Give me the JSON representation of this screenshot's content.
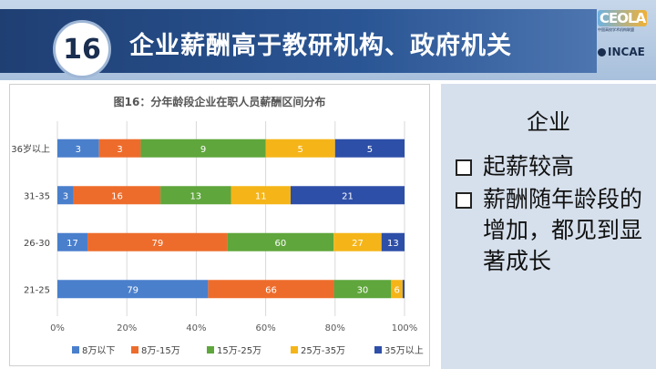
{
  "slide": {
    "number": "16",
    "title": "企业薪酬高于教研机构、政府机关"
  },
  "logos": {
    "top": "CEOLA",
    "top_sub": "中国高校学术机构联盟",
    "bottom": "INCAE"
  },
  "panel": {
    "heading": "企业",
    "bullets": [
      "起薪较高",
      "薪酬随年龄段的增加，都见到显著成长"
    ]
  },
  "colors": {
    "header_dark": "#1f3f73",
    "panel_bg": "#d6e0ec",
    "series": [
      "#4a7fcc",
      "#ed6c2c",
      "#5fa63c",
      "#f5b519",
      "#2e4fa8"
    ]
  },
  "chart_data": {
    "type": "bar",
    "orientation": "horizontal",
    "stacked": "percent",
    "title": "图16：分年龄段企业在职人员薪酬区间分布",
    "categories": [
      "36岁以上",
      "31-35",
      "26-30",
      "21-25"
    ],
    "series": [
      {
        "name": "8万以下",
        "values": [
          3,
          3,
          17,
          79
        ]
      },
      {
        "name": "8万-15万",
        "values": [
          3,
          16,
          79,
          66
        ]
      },
      {
        "name": "15万-25万",
        "values": [
          9,
          13,
          60,
          30
        ]
      },
      {
        "name": "25万-35万",
        "values": [
          5,
          11,
          27,
          6
        ]
      },
      {
        "name": "35万以上",
        "values": [
          5,
          21,
          13,
          1
        ]
      }
    ],
    "data_labels": [
      [
        "3",
        "3",
        "9",
        "5",
        "5"
      ],
      [
        "3",
        "16",
        "13",
        "11",
        "21"
      ],
      [
        "17",
        "79",
        "60",
        "27",
        "13"
      ],
      [
        "79",
        "66",
        "30",
        "6",
        ""
      ]
    ],
    "x_ticks": [
      "0%",
      "20%",
      "40%",
      "60%",
      "80%",
      "100%"
    ],
    "xlim": [
      0,
      100
    ],
    "legend_position": "bottom",
    "grid": true
  }
}
